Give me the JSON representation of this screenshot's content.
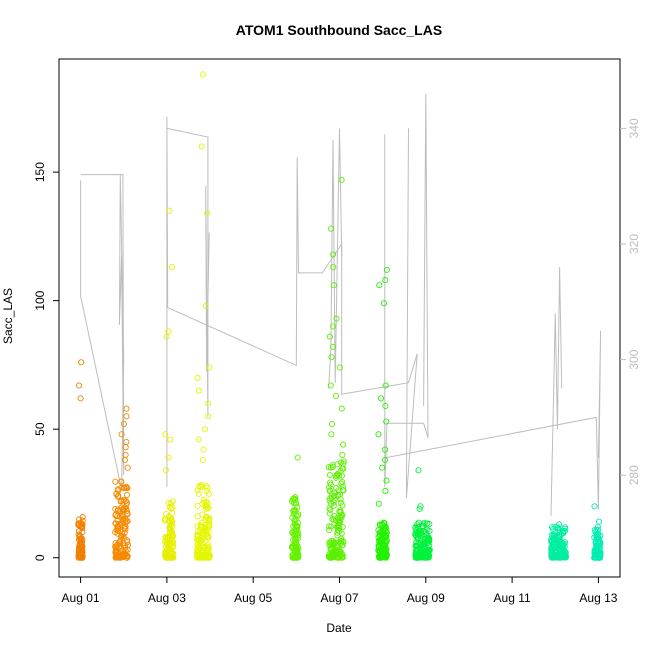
{
  "chart_data": {
    "type": "scatter",
    "title": "ATOM1 Southbound Sacc_LAS",
    "xlabel": "Date",
    "ylabel": "Sacc_LAS",
    "x_unit": "days since Aug 01",
    "xlim": [
      -0.5,
      12.5
    ],
    "ylim": [
      -7.5,
      194
    ],
    "y2lim": [
      262.4,
      352.0
    ],
    "x_ticks": [
      {
        "value": 0,
        "label": "Aug 01"
      },
      {
        "value": 2,
        "label": "Aug 03"
      },
      {
        "value": 4,
        "label": "Aug 05"
      },
      {
        "value": 6,
        "label": "Aug 07"
      },
      {
        "value": 8,
        "label": "Aug 09"
      },
      {
        "value": 10,
        "label": "Aug 11"
      },
      {
        "value": 12,
        "label": "Aug 13"
      }
    ],
    "y_ticks": [
      {
        "value": 0,
        "label": "0"
      },
      {
        "value": 50,
        "label": "50"
      },
      {
        "value": 100,
        "label": "100"
      },
      {
        "value": 150,
        "label": "150"
      }
    ],
    "y2_ticks": [
      {
        "value": 280,
        "label": "280"
      },
      {
        "value": 300,
        "label": "300"
      },
      {
        "value": 320,
        "label": "320"
      },
      {
        "value": 340,
        "label": "340"
      }
    ],
    "right_axis_color": "#bdbdbd",
    "line_color": "#bdbdbd",
    "scatter_clusters": [
      {
        "x0": -0.05,
        "x1": 0.05,
        "dense_max": 16,
        "color": "#f08000",
        "outliers": [
          76,
          67,
          62
        ]
      },
      {
        "x0": 0.8,
        "x1": 1.1,
        "dense_max": 30,
        "color": "#f58a00",
        "outliers": [
          58,
          55,
          52,
          48,
          45,
          43,
          40,
          38,
          35
        ]
      },
      {
        "x0": 1.95,
        "x1": 2.15,
        "dense_max": 22,
        "color": "#e8ee00",
        "outliers": [
          135,
          113,
          88,
          86,
          48,
          46,
          39,
          34
        ]
      },
      {
        "x0": 2.7,
        "x1": 3.0,
        "dense_max": 30,
        "color": "#e4f700",
        "outliers": [
          188,
          160,
          134,
          98,
          74,
          70,
          65,
          60,
          55,
          50,
          46,
          42,
          38
        ]
      },
      {
        "x0": 4.9,
        "x1": 5.05,
        "dense_max": 24,
        "color": "#66f200",
        "outliers": [
          39
        ]
      },
      {
        "x0": 5.75,
        "x1": 6.1,
        "dense_max": 38,
        "color": "#5cf000",
        "outliers": [
          147,
          128,
          118,
          113,
          106,
          93,
          90,
          86,
          82,
          78,
          74,
          67,
          63,
          58,
          52,
          48,
          44,
          40
        ]
      },
      {
        "x0": 6.9,
        "x1": 7.1,
        "dense_max": 14,
        "color": "#22f200",
        "outliers": [
          112,
          108,
          106,
          99,
          67,
          62,
          59,
          53,
          48,
          42,
          38,
          35,
          30,
          26,
          21
        ]
      },
      {
        "x0": 7.75,
        "x1": 8.1,
        "dense_max": 14,
        "color": "#00f23c",
        "outliers": [
          34,
          20,
          19
        ]
      },
      {
        "x0": 10.9,
        "x1": 11.25,
        "dense_max": 12,
        "color": "#00eea0",
        "outliers": [
          13
        ]
      },
      {
        "x0": 11.9,
        "x1": 12.05,
        "dense_max": 11,
        "color": "#00eeb4",
        "outliers": [
          20,
          14,
          12
        ]
      }
    ],
    "line_segments": [
      [
        [
          0.0,
          331
        ],
        [
          0.0,
          311
        ],
        [
          0.95,
          277.5
        ],
        [
          1.0,
          300
        ],
        [
          0.92,
          332
        ],
        [
          0.9,
          306
        ],
        [
          0.95,
          318
        ],
        [
          1.0,
          280
        ],
        [
          0.98,
          332
        ],
        [
          0.0,
          332
        ]
      ],
      [
        [
          2.0,
          278
        ],
        [
          2.0,
          342
        ],
        [
          2.02,
          309
        ],
        [
          5.0,
          299
        ],
        [
          5.02,
          335
        ],
        [
          5.05,
          315
        ],
        [
          5.6,
          315
        ],
        [
          6.05,
          320
        ],
        [
          6.05,
          294
        ],
        [
          7.6,
          296
        ],
        [
          7.8,
          301
        ],
        [
          7.55,
          276
        ],
        [
          7.6,
          340
        ]
      ],
      [
        [
          2.0,
          340
        ],
        [
          2.95,
          338.5
        ],
        [
          2.95,
          290
        ],
        [
          2.9,
          330
        ],
        [
          2.92,
          298
        ],
        [
          2.98,
          322
        ]
      ],
      [
        [
          5.75,
          295
        ],
        [
          5.8,
          302
        ],
        [
          5.85,
          338
        ],
        [
          5.9,
          296
        ],
        [
          6.0,
          340
        ],
        [
          6.05,
          318
        ]
      ],
      [
        [
          7.05,
          339
        ],
        [
          7.05,
          278
        ],
        [
          7.1,
          289
        ],
        [
          7.95,
          289
        ],
        [
          8.05,
          286.5
        ],
        [
          8.0,
          346
        ],
        [
          7.95,
          292
        ],
        [
          8.0,
          346
        ]
      ],
      [
        [
          7.05,
          283
        ],
        [
          11.95,
          290
        ],
        [
          12.0,
          274
        ],
        [
          12.05,
          305
        ],
        [
          12.0,
          283
        ]
      ],
      [
        [
          10.9,
          273
        ],
        [
          11.0,
          308
        ],
        [
          11.05,
          288
        ],
        [
          11.1,
          316
        ],
        [
          11.15,
          295
        ]
      ]
    ]
  }
}
